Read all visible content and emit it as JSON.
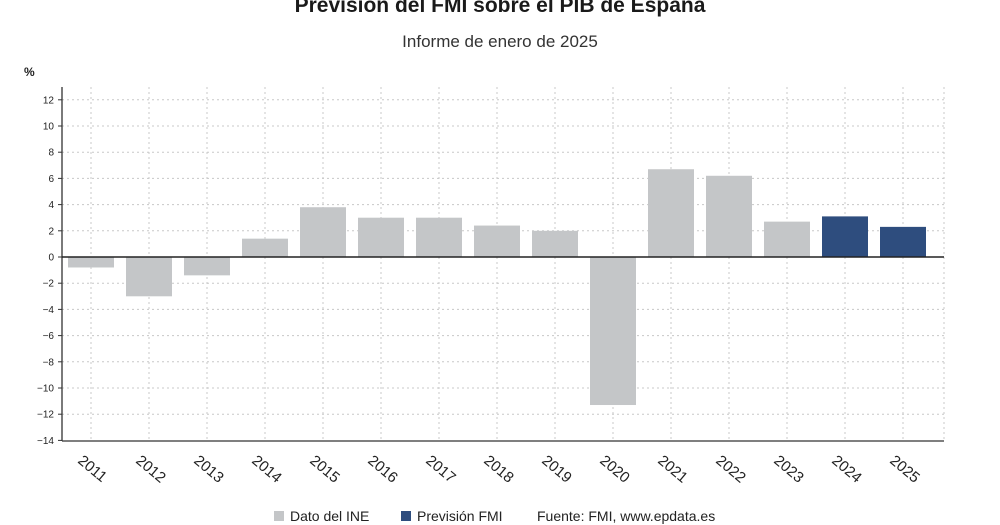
{
  "title": "Previsión del FMI sobre el PIB de España",
  "subtitle": "Informe de enero de 2025",
  "source": "Fuente: FMI, www.epdata.es",
  "colors": {
    "ine": "#c4c6c8",
    "fmi": "#2e4d7e"
  },
  "chart_data": {
    "type": "bar",
    "title": "Previsión del FMI sobre el PIB de España",
    "subtitle": "Informe de enero de 2025",
    "ylabel": "%",
    "ylim": [
      -14,
      13
    ],
    "yticks": [
      12,
      10,
      8,
      6,
      4,
      2,
      0,
      -2,
      -4,
      -6,
      -8,
      -10,
      -12,
      -14
    ],
    "ytick_labels": [
      "12",
      "10",
      "8",
      "6",
      "4",
      "2",
      "0",
      "−2",
      "−4",
      "−6",
      "−8",
      "−10",
      "−12",
      "−14"
    ],
    "grid": true,
    "legend_position": "bottom",
    "categories": [
      "2011",
      "2012",
      "2013",
      "2014",
      "2015",
      "2016",
      "2017",
      "2018",
      "2019",
      "2020",
      "2021",
      "2022",
      "2023",
      "2024",
      "2025"
    ],
    "series": [
      {
        "name": "Dato del INE",
        "color": "#c4c6c8",
        "values": [
          -0.8,
          -3.0,
          -1.4,
          1.4,
          3.8,
          3.0,
          3.0,
          2.4,
          2.0,
          -11.3,
          6.7,
          6.2,
          2.7,
          null,
          null
        ]
      },
      {
        "name": "Previsión FMI",
        "color": "#2e4d7e",
        "values": [
          null,
          null,
          null,
          null,
          null,
          null,
          null,
          null,
          null,
          null,
          null,
          null,
          null,
          3.1,
          2.3
        ]
      }
    ]
  }
}
